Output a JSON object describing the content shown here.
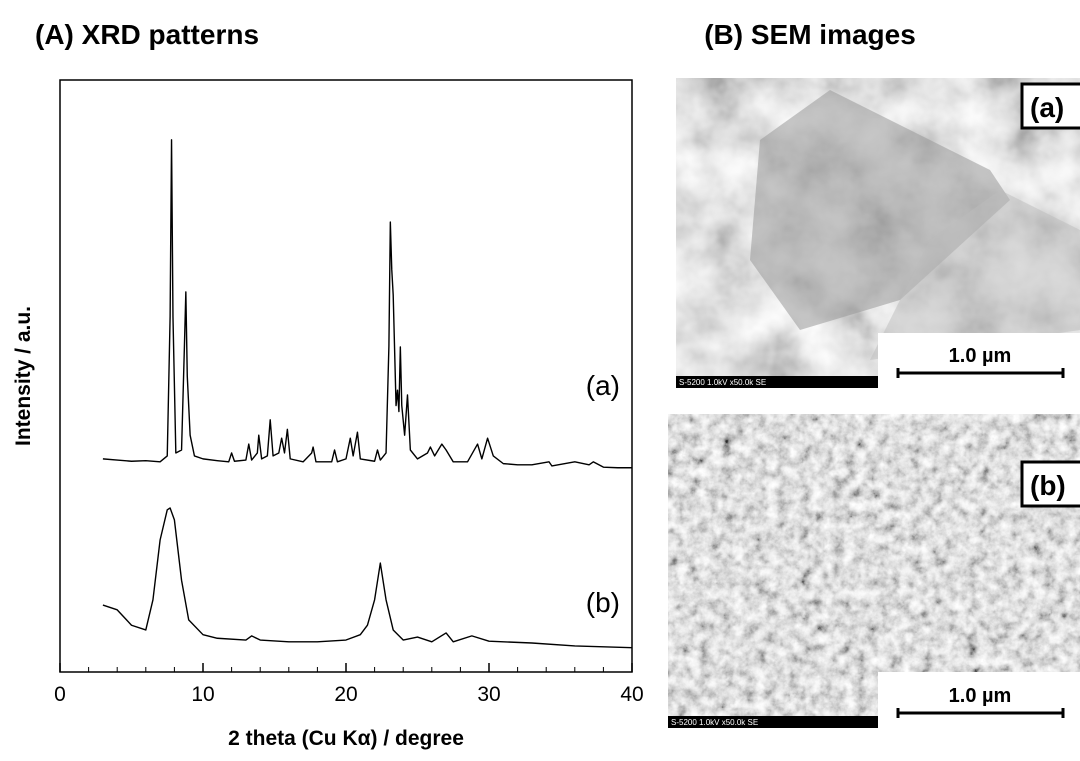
{
  "chart_data": {
    "type": "line",
    "title": "(A) XRD patterns",
    "x_label": "2 theta (Cu Kα) / degree",
    "y_label": "Intensity / a.u.",
    "xlim": [
      0,
      40
    ],
    "xticks": [
      0,
      10,
      20,
      30,
      40
    ],
    "xminorticks": [
      2,
      4,
      6,
      8,
      12,
      14,
      16,
      18,
      22,
      24,
      26,
      28,
      32,
      34,
      36,
      38
    ],
    "ylim": [
      0,
      100
    ],
    "series": [
      {
        "name": "(a)",
        "color": "#000000",
        "x": [
          3.0,
          4.0,
          5.0,
          6.0,
          7.0,
          7.5,
          7.7,
          7.8,
          7.9,
          8.1,
          8.5,
          8.7,
          8.8,
          8.9,
          9.0,
          9.1,
          9.4,
          10.0,
          11.0,
          11.8,
          12.0,
          12.2,
          13.0,
          13.2,
          13.4,
          13.8,
          13.9,
          14.1,
          14.5,
          14.7,
          14.9,
          15.3,
          15.5,
          15.7,
          15.9,
          16.1,
          17.0,
          17.6,
          17.7,
          17.9,
          19.0,
          19.2,
          19.4,
          20.0,
          20.3,
          20.5,
          20.8,
          21.0,
          22.0,
          22.2,
          22.4,
          22.8,
          23.0,
          23.1,
          23.2,
          23.3,
          23.5,
          23.6,
          23.7,
          23.8,
          23.9,
          24.1,
          24.3,
          24.5,
          25.0,
          25.7,
          25.9,
          26.2,
          26.7,
          27.0,
          27.5,
          28.5,
          29.2,
          29.5,
          29.9,
          30.3,
          31.0,
          32.0,
          33.0,
          34.2,
          34.4,
          36.0,
          37.0,
          37.3,
          38.0,
          39.0,
          40.0
        ],
        "values": [
          36.0,
          35.8,
          35.6,
          35.7,
          35.5,
          36.5,
          60,
          89.9,
          60,
          37,
          37.5,
          55,
          64.2,
          50,
          45,
          40,
          36.5,
          36,
          35.7,
          35.5,
          37,
          35.6,
          35.8,
          38.5,
          35.8,
          37,
          40,
          36,
          36.5,
          42.6,
          36.5,
          37,
          39.5,
          37,
          41,
          36,
          35.5,
          37,
          38,
          35.5,
          35.5,
          37.5,
          35.5,
          36,
          39.5,
          36.5,
          40.5,
          36,
          35.6,
          37.5,
          35.8,
          37,
          55,
          76,
          68,
          63.7,
          45,
          47.6,
          44,
          54.9,
          45,
          40,
          46.8,
          37.5,
          36,
          37,
          38,
          36.5,
          38.5,
          37.5,
          35.5,
          35.5,
          38.5,
          36,
          39.5,
          36.5,
          35.2,
          35,
          35,
          35.5,
          34.8,
          35.5,
          35.0,
          35.5,
          34.6,
          34.5,
          34.5
        ]
      },
      {
        "name": "(b)",
        "color": "#000000",
        "x": [
          3.0,
          4.0,
          5.0,
          6.0,
          6.5,
          7.0,
          7.5,
          7.7,
          8.0,
          8.5,
          9.0,
          10.0,
          11.0,
          13.0,
          13.4,
          14.0,
          16.0,
          18.0,
          20.0,
          21.0,
          21.5,
          22.0,
          22.4,
          22.8,
          23.3,
          24.0,
          25.0,
          26.0,
          27.0,
          27.5,
          28.8,
          30.0,
          33.0,
          36.0,
          40.0
        ],
        "values": [
          11.3,
          10.5,
          7.9,
          7.1,
          12.2,
          22.3,
          27.4,
          27.7,
          25.7,
          15.5,
          8.8,
          6.3,
          5.7,
          5.4,
          6.1,
          5.4,
          5.1,
          5.1,
          5.4,
          6.3,
          7.9,
          12.2,
          18.4,
          12.2,
          7.1,
          5.4,
          5.9,
          5.1,
          6.6,
          5.1,
          6.1,
          5.2,
          4.9,
          4.4,
          4.1
        ]
      }
    ]
  },
  "sem": {
    "title": "(B) SEM images",
    "panels": [
      {
        "label": "(a)",
        "scale": "1.0 µm",
        "info": "S-5200 1.0kV x50.0k SE"
      },
      {
        "label": "(b)",
        "scale": "1.0 µm",
        "info": "S-5200 1.0kV x50.0k SE"
      }
    ]
  }
}
